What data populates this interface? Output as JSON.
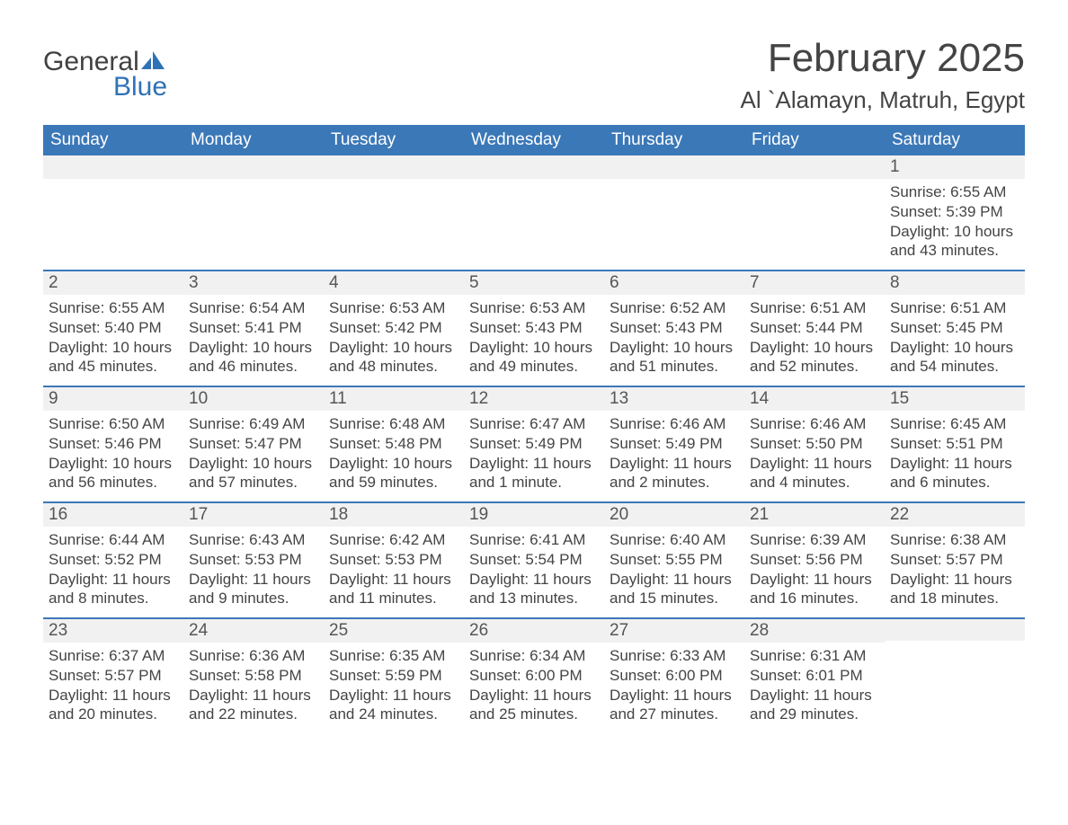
{
  "logo": {
    "text1": "General",
    "text2": "Blue",
    "icon_color": "#2f72b6"
  },
  "title": "February 2025",
  "location": "Al `Alamayn, Matruh, Egypt",
  "colors": {
    "header_bg": "#3b78b8",
    "header_text": "#ffffff",
    "daynum_bg": "#f1f1f1",
    "border": "#3b78b8",
    "body_text": "#444444",
    "page_bg": "#ffffff"
  },
  "typography": {
    "title_fontsize": 44,
    "location_fontsize": 26,
    "weekday_fontsize": 19,
    "daynum_fontsize": 19,
    "body_fontsize": 17
  },
  "weekdays": [
    "Sunday",
    "Monday",
    "Tuesday",
    "Wednesday",
    "Thursday",
    "Friday",
    "Saturday"
  ],
  "weeks": [
    [
      {
        "blank": true
      },
      {
        "blank": true
      },
      {
        "blank": true
      },
      {
        "blank": true
      },
      {
        "blank": true
      },
      {
        "blank": true
      },
      {
        "n": "1",
        "sunrise": "Sunrise: 6:55 AM",
        "sunset": "Sunset: 5:39 PM",
        "daylight": "Daylight: 10 hours and 43 minutes."
      }
    ],
    [
      {
        "n": "2",
        "sunrise": "Sunrise: 6:55 AM",
        "sunset": "Sunset: 5:40 PM",
        "daylight": "Daylight: 10 hours and 45 minutes."
      },
      {
        "n": "3",
        "sunrise": "Sunrise: 6:54 AM",
        "sunset": "Sunset: 5:41 PM",
        "daylight": "Daylight: 10 hours and 46 minutes."
      },
      {
        "n": "4",
        "sunrise": "Sunrise: 6:53 AM",
        "sunset": "Sunset: 5:42 PM",
        "daylight": "Daylight: 10 hours and 48 minutes."
      },
      {
        "n": "5",
        "sunrise": "Sunrise: 6:53 AM",
        "sunset": "Sunset: 5:43 PM",
        "daylight": "Daylight: 10 hours and 49 minutes."
      },
      {
        "n": "6",
        "sunrise": "Sunrise: 6:52 AM",
        "sunset": "Sunset: 5:43 PM",
        "daylight": "Daylight: 10 hours and 51 minutes."
      },
      {
        "n": "7",
        "sunrise": "Sunrise: 6:51 AM",
        "sunset": "Sunset: 5:44 PM",
        "daylight": "Daylight: 10 hours and 52 minutes."
      },
      {
        "n": "8",
        "sunrise": "Sunrise: 6:51 AM",
        "sunset": "Sunset: 5:45 PM",
        "daylight": "Daylight: 10 hours and 54 minutes."
      }
    ],
    [
      {
        "n": "9",
        "sunrise": "Sunrise: 6:50 AM",
        "sunset": "Sunset: 5:46 PM",
        "daylight": "Daylight: 10 hours and 56 minutes."
      },
      {
        "n": "10",
        "sunrise": "Sunrise: 6:49 AM",
        "sunset": "Sunset: 5:47 PM",
        "daylight": "Daylight: 10 hours and 57 minutes."
      },
      {
        "n": "11",
        "sunrise": "Sunrise: 6:48 AM",
        "sunset": "Sunset: 5:48 PM",
        "daylight": "Daylight: 10 hours and 59 minutes."
      },
      {
        "n": "12",
        "sunrise": "Sunrise: 6:47 AM",
        "sunset": "Sunset: 5:49 PM",
        "daylight": "Daylight: 11 hours and 1 minute."
      },
      {
        "n": "13",
        "sunrise": "Sunrise: 6:46 AM",
        "sunset": "Sunset: 5:49 PM",
        "daylight": "Daylight: 11 hours and 2 minutes."
      },
      {
        "n": "14",
        "sunrise": "Sunrise: 6:46 AM",
        "sunset": "Sunset: 5:50 PM",
        "daylight": "Daylight: 11 hours and 4 minutes."
      },
      {
        "n": "15",
        "sunrise": "Sunrise: 6:45 AM",
        "sunset": "Sunset: 5:51 PM",
        "daylight": "Daylight: 11 hours and 6 minutes."
      }
    ],
    [
      {
        "n": "16",
        "sunrise": "Sunrise: 6:44 AM",
        "sunset": "Sunset: 5:52 PM",
        "daylight": "Daylight: 11 hours and 8 minutes."
      },
      {
        "n": "17",
        "sunrise": "Sunrise: 6:43 AM",
        "sunset": "Sunset: 5:53 PM",
        "daylight": "Daylight: 11 hours and 9 minutes."
      },
      {
        "n": "18",
        "sunrise": "Sunrise: 6:42 AM",
        "sunset": "Sunset: 5:53 PM",
        "daylight": "Daylight: 11 hours and 11 minutes."
      },
      {
        "n": "19",
        "sunrise": "Sunrise: 6:41 AM",
        "sunset": "Sunset: 5:54 PM",
        "daylight": "Daylight: 11 hours and 13 minutes."
      },
      {
        "n": "20",
        "sunrise": "Sunrise: 6:40 AM",
        "sunset": "Sunset: 5:55 PM",
        "daylight": "Daylight: 11 hours and 15 minutes."
      },
      {
        "n": "21",
        "sunrise": "Sunrise: 6:39 AM",
        "sunset": "Sunset: 5:56 PM",
        "daylight": "Daylight: 11 hours and 16 minutes."
      },
      {
        "n": "22",
        "sunrise": "Sunrise: 6:38 AM",
        "sunset": "Sunset: 5:57 PM",
        "daylight": "Daylight: 11 hours and 18 minutes."
      }
    ],
    [
      {
        "n": "23",
        "sunrise": "Sunrise: 6:37 AM",
        "sunset": "Sunset: 5:57 PM",
        "daylight": "Daylight: 11 hours and 20 minutes."
      },
      {
        "n": "24",
        "sunrise": "Sunrise: 6:36 AM",
        "sunset": "Sunset: 5:58 PM",
        "daylight": "Daylight: 11 hours and 22 minutes."
      },
      {
        "n": "25",
        "sunrise": "Sunrise: 6:35 AM",
        "sunset": "Sunset: 5:59 PM",
        "daylight": "Daylight: 11 hours and 24 minutes."
      },
      {
        "n": "26",
        "sunrise": "Sunrise: 6:34 AM",
        "sunset": "Sunset: 6:00 PM",
        "daylight": "Daylight: 11 hours and 25 minutes."
      },
      {
        "n": "27",
        "sunrise": "Sunrise: 6:33 AM",
        "sunset": "Sunset: 6:00 PM",
        "daylight": "Daylight: 11 hours and 27 minutes."
      },
      {
        "n": "28",
        "sunrise": "Sunrise: 6:31 AM",
        "sunset": "Sunset: 6:01 PM",
        "daylight": "Daylight: 11 hours and 29 minutes."
      },
      {
        "blank": true
      }
    ]
  ]
}
